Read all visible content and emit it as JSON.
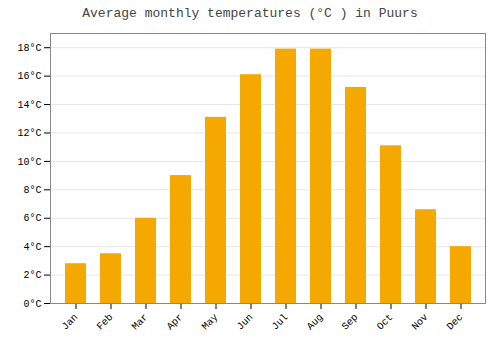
{
  "chart_data": {
    "type": "bar",
    "title": "Average monthly temperatures (°C ) in Puurs",
    "categories": [
      "Jan",
      "Feb",
      "Mar",
      "Apr",
      "May",
      "Jun",
      "Jul",
      "Aug",
      "Sep",
      "Oct",
      "Nov",
      "Dec"
    ],
    "values": [
      2.8,
      3.5,
      6.0,
      9.0,
      13.1,
      16.1,
      17.9,
      17.9,
      15.2,
      11.1,
      6.6,
      4.0
    ],
    "color": "#F5A800",
    "ylim": [
      0,
      19
    ],
    "yticks": [
      {
        "value": 0,
        "label": "0°C"
      },
      {
        "value": 2,
        "label": "2°C"
      },
      {
        "value": 4,
        "label": "4°C"
      },
      {
        "value": 6,
        "label": "6°C"
      },
      {
        "value": 8,
        "label": "8°C"
      },
      {
        "value": 10,
        "label": "10°C"
      },
      {
        "value": 12,
        "label": "12°C"
      },
      {
        "value": 14,
        "label": "14°C"
      },
      {
        "value": 16,
        "label": "16°C"
      },
      {
        "value": 18,
        "label": "18°C"
      }
    ],
    "grid": true
  }
}
